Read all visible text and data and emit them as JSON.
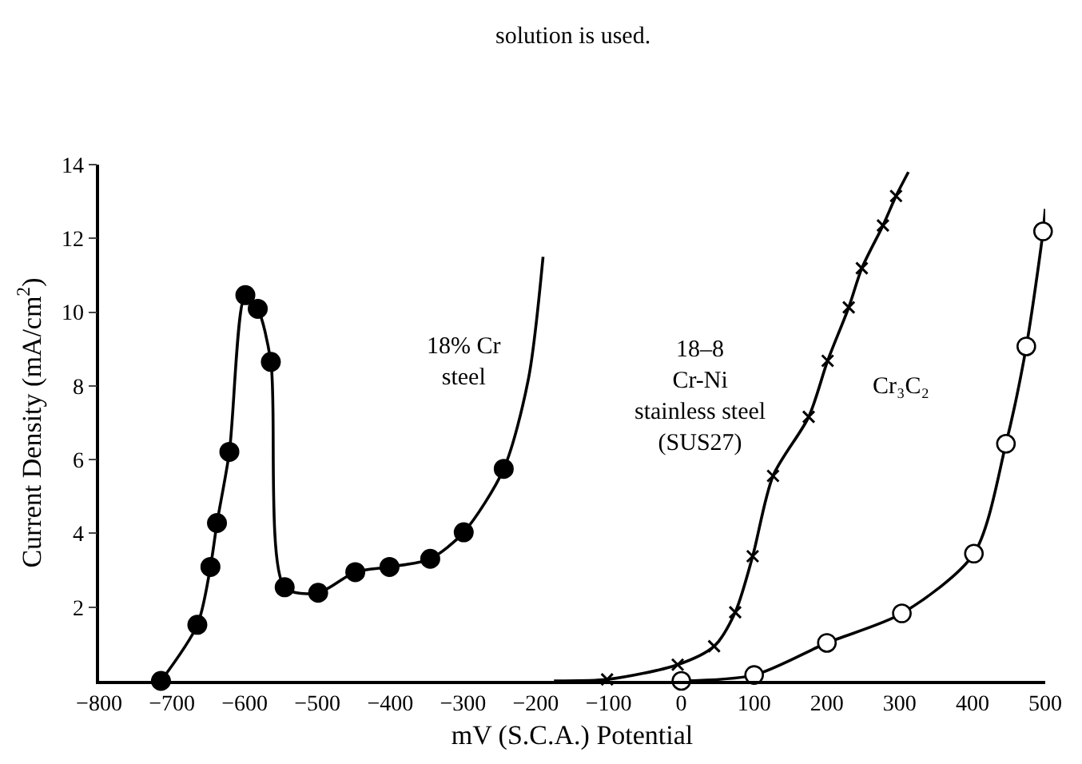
{
  "chart_data": {
    "type": "line",
    "xlabel": "mV (S.C.A.) Potential",
    "ylabel": "Current Density (mA/cm$^{2}$)",
    "xlim": [
      -800,
      500
    ],
    "xticks": [
      -800,
      -700,
      -600,
      -500,
      -400,
      -300,
      -200,
      -100,
      0,
      100,
      200,
      300,
      400,
      500
    ],
    "ylim": [
      0,
      14
    ],
    "yticks": [
      2,
      4,
      6,
      8,
      10,
      12,
      14
    ],
    "series": [
      {
        "color": "#000000",
        "marker": "none",
        "x": [
          -715,
          -665,
          -647,
          -638,
          -621,
          -599,
          -582,
          -564,
          -545,
          -499,
          -448,
          -401,
          -345,
          -299,
          -244,
          -210,
          -190
        ],
        "values": [
          0,
          1.52,
          3.09,
          4.28,
          6.21,
          10.46,
          10.09,
          8.65,
          2.54,
          2.39,
          2.95,
          3.09,
          3.31,
          4.03,
          5.75,
          8.2,
          11.5
        ]
      },
      {
        "type": "scatter",
        "color": "#000000",
        "marker": "circle",
        "x": [
          -715,
          -665,
          -647,
          -638,
          -621,
          -599,
          -582,
          -564,
          -545,
          -499,
          -448,
          -401,
          -345,
          -299,
          -244
        ],
        "values": [
          0,
          1.52,
          3.09,
          4.28,
          6.21,
          10.46,
          10.09,
          8.65,
          2.54,
          2.39,
          2.95,
          3.09,
          3.31,
          4.03,
          5.75
        ]
      },
      {
        "color": "#000000",
        "marker": "none",
        "x": [
          -175,
          -102,
          -5,
          45,
          74,
          98,
          126,
          175,
          201,
          230,
          248,
          277,
          295,
          312
        ],
        "values": [
          0,
          0.04,
          0.44,
          0.94,
          1.86,
          3.38,
          5.56,
          7.16,
          8.68,
          10.13,
          11.19,
          12.35,
          13.15,
          13.8
        ]
      },
      {
        "type": "scatter",
        "color": "#000000",
        "marker": "cross",
        "x": [
          -102,
          -5,
          45,
          74,
          98,
          126,
          175,
          201,
          230,
          248,
          277,
          295
        ],
        "values": [
          0.04,
          0.44,
          0.94,
          1.86,
          3.38,
          5.56,
          7.16,
          8.68,
          10.13,
          11.19,
          12.35,
          13.15
        ]
      },
      {
        "color": "#000000",
        "marker": "none",
        "x": [
          0,
          100,
          200,
          303,
          402,
          446,
          474,
          497,
          500
        ],
        "values": [
          0,
          0.16,
          1.03,
          1.83,
          3.45,
          6.43,
          9.07,
          12.19,
          12.8
        ]
      },
      {
        "type": "scatter",
        "color": "#000000",
        "marker": "circle-open",
        "x": [
          0,
          100,
          200,
          303,
          402,
          446,
          474,
          497
        ],
        "values": [
          0,
          0.16,
          1.03,
          1.83,
          3.45,
          6.43,
          9.07,
          12.19
        ]
      }
    ],
    "annotations": [
      "18% Cr\nsteel",
      "18–8\nCr-Ni\nstainless steel\n(SUS27)",
      "Cr₃C₂",
      "solution is used."
    ]
  }
}
